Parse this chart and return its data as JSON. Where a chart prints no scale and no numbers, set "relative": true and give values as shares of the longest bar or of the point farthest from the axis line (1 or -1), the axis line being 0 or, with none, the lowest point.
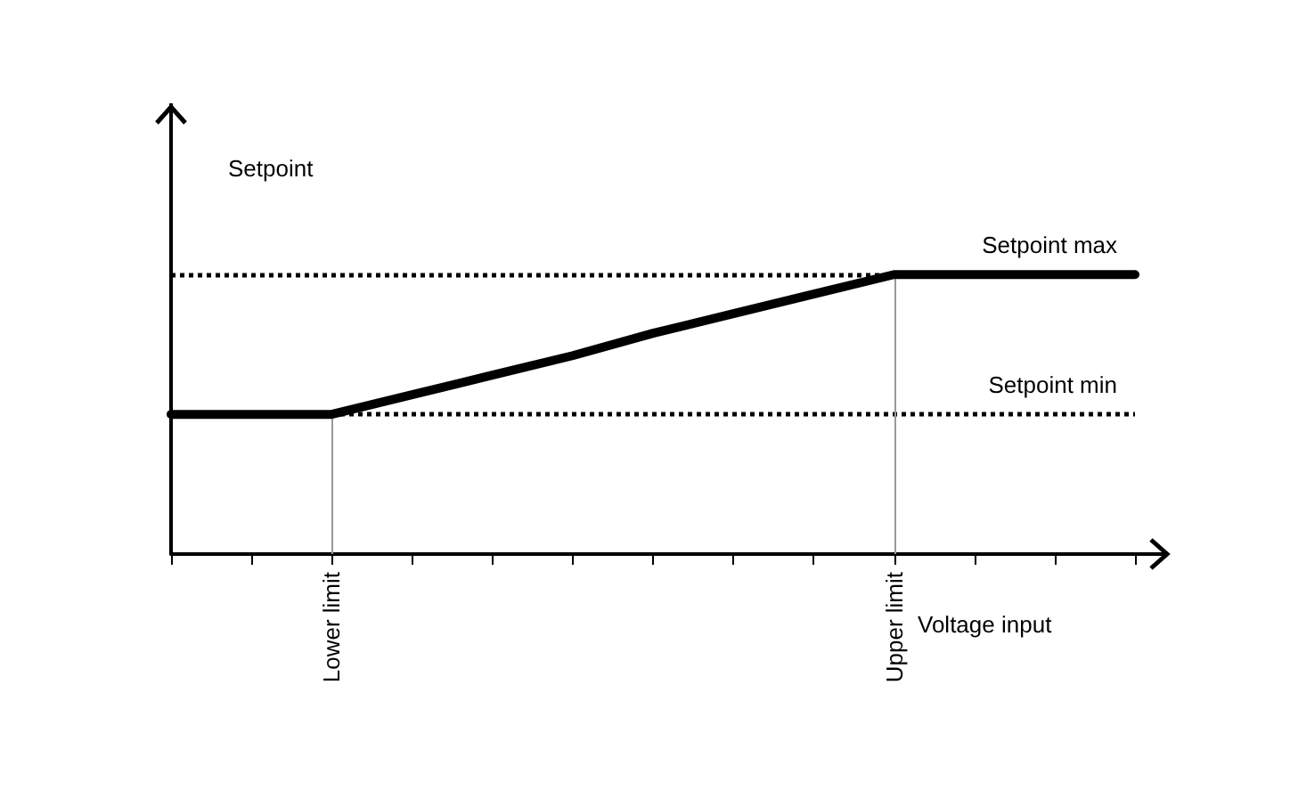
{
  "chart_data": {
    "type": "line",
    "relative": true,
    "xlabel": "Voltage input",
    "ylabel": "Setpoint",
    "categories": [
      null,
      null,
      "Lower limit",
      null,
      null,
      null,
      null,
      null,
      null,
      "Upper limit",
      null,
      null,
      null
    ],
    "series": [
      {
        "color": "#000000",
        "values": [
          0.5,
          0.5,
          0.5,
          0.57,
          0.64,
          0.71,
          0.79,
          0.86,
          0.93,
          1,
          1,
          1,
          1
        ]
      }
    ],
    "ref_lines": [
      {
        "axis": "y",
        "value": 1,
        "label": "Setpoint max",
        "color": "#000000",
        "line_style": "dotted"
      },
      {
        "axis": "y",
        "value": 0.5,
        "label": "Setpoint min",
        "color": "#000000",
        "line_style": "dotted"
      },
      {
        "axis": "x",
        "value": "Lower limit",
        "color": "#999999",
        "line_style": "solid"
      },
      {
        "axis": "x",
        "value": "Upper limit",
        "color": "#999999",
        "line_style": "solid"
      }
    ],
    "marker": "none",
    "line_style": "solid"
  }
}
